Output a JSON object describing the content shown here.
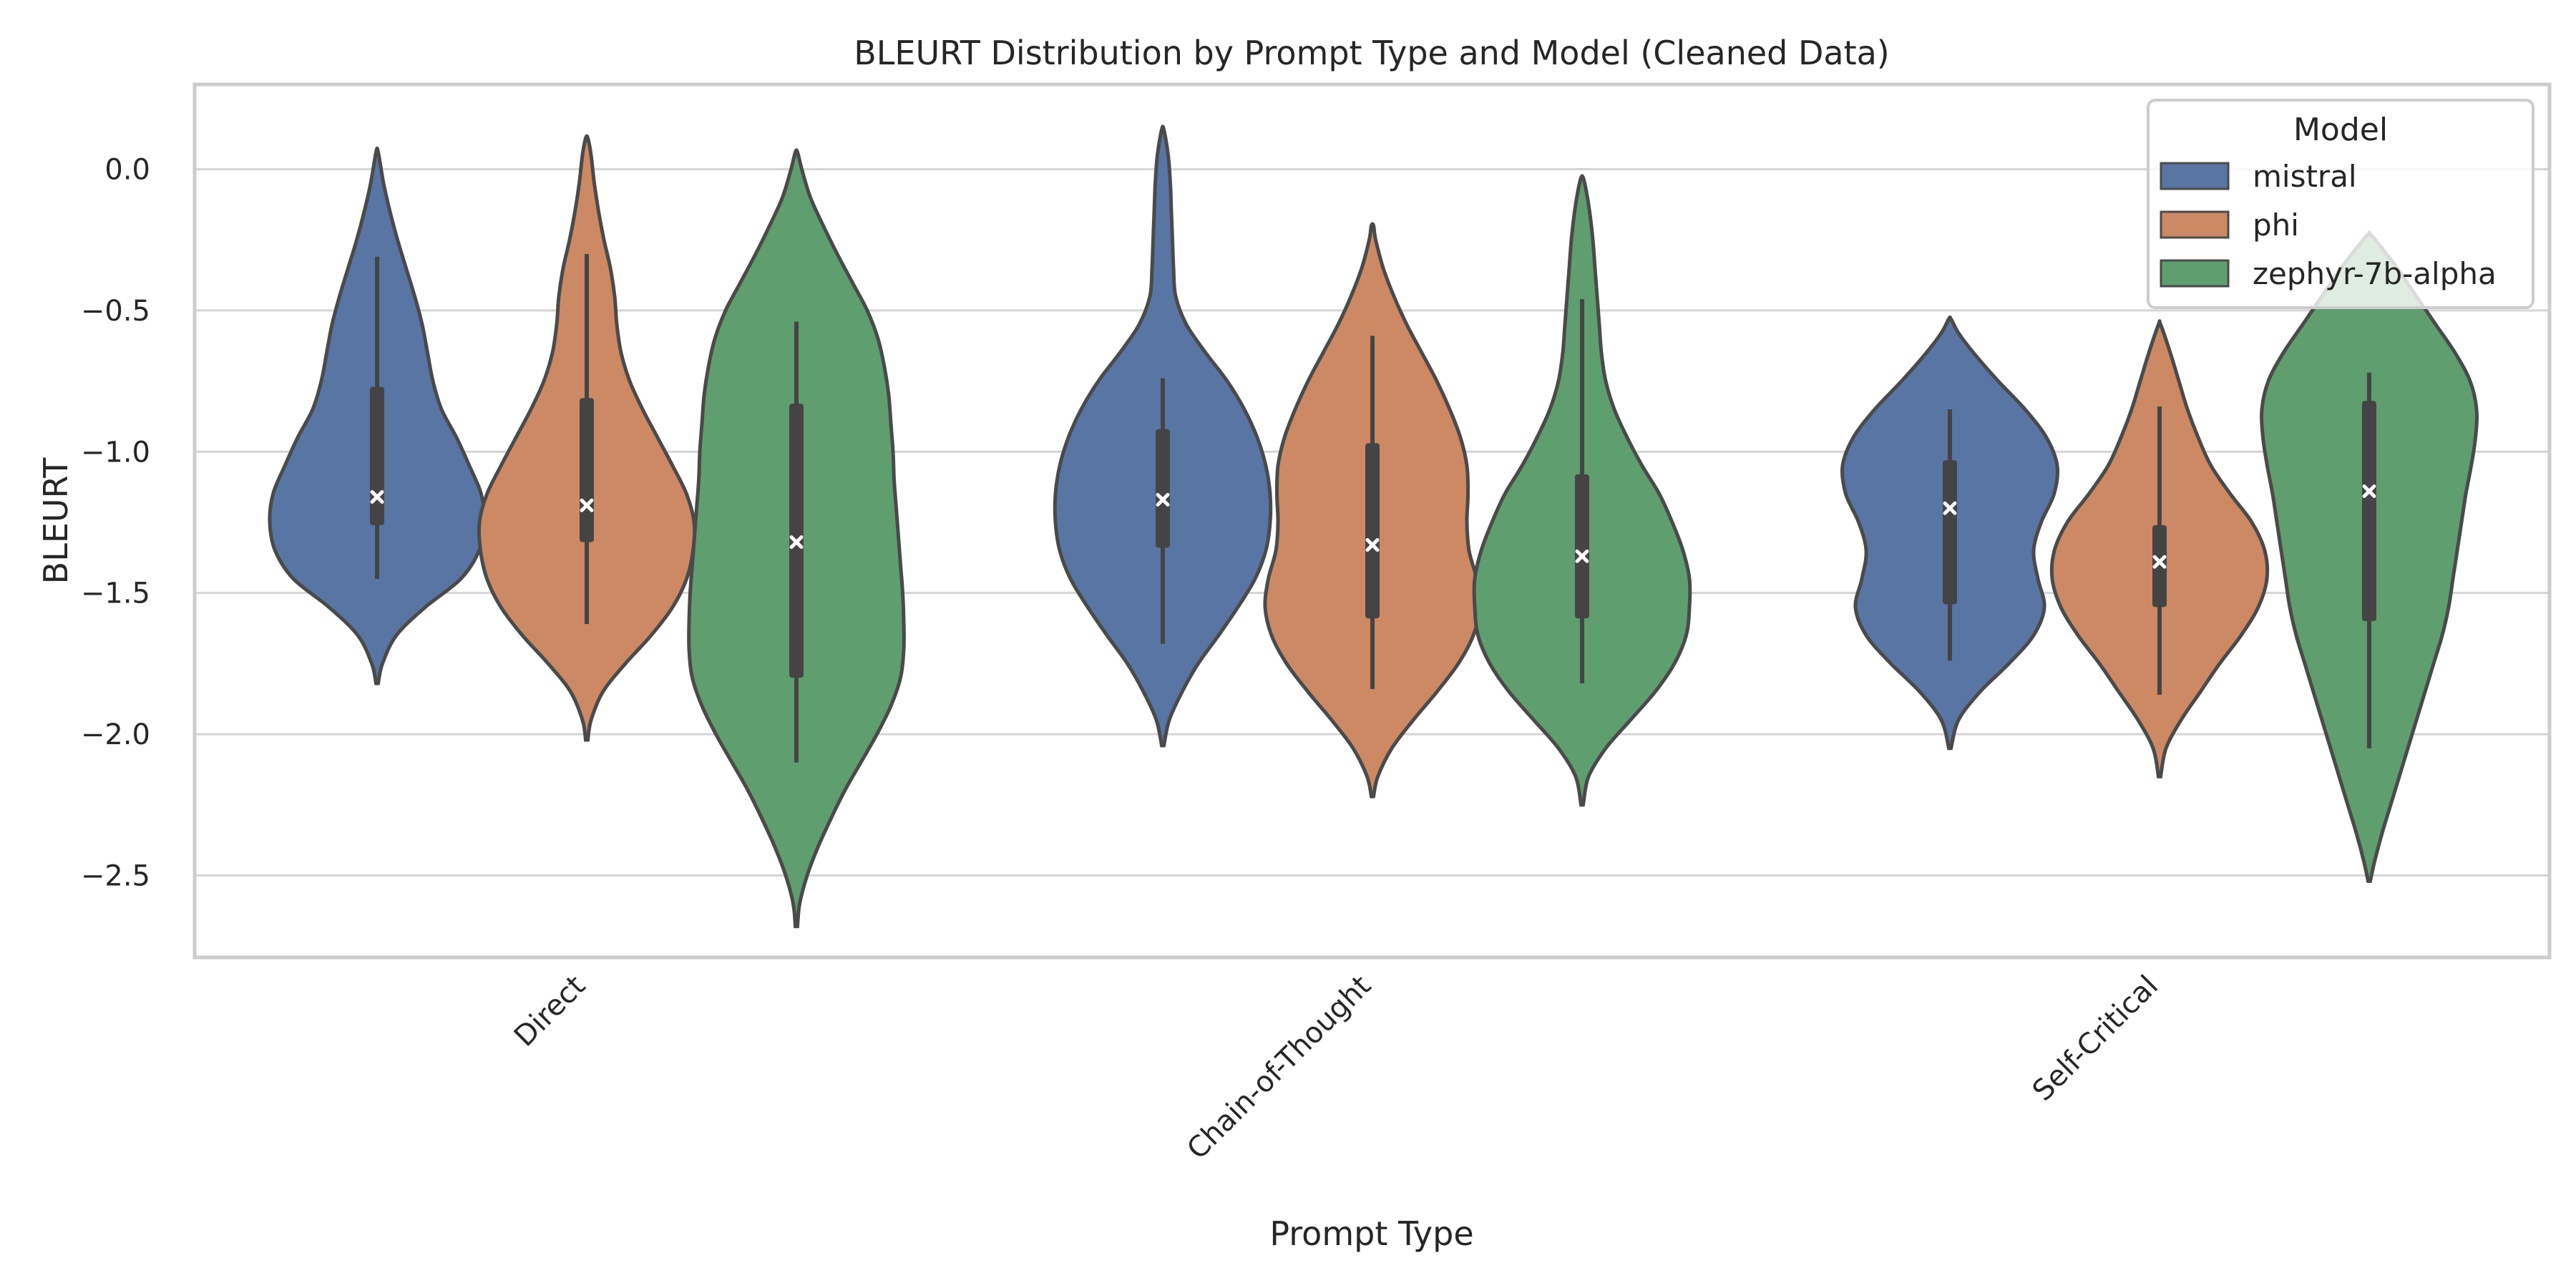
{
  "chart_data": {
    "type": "violin",
    "title": "BLEURT Distribution by Prompt Type and Model (Cleaned Data)",
    "xlabel": "Prompt Type",
    "ylabel": "BLEURT",
    "ylim": [
      -2.79,
      0.3
    ],
    "yticks": [
      0.0,
      -0.5,
      -1.0,
      -1.5,
      -2.0,
      -2.5
    ],
    "ytick_labels": [
      "0.0",
      "−0.5",
      "−1.0",
      "−1.5",
      "−2.0",
      "−2.5"
    ],
    "categories": [
      "Direct",
      "Chain-of-Thought",
      "Self-Critical"
    ],
    "grid": true,
    "legend": {
      "title": "Model",
      "position": "top-right"
    },
    "series": [
      {
        "name": "mistral",
        "color": "#5875a4",
        "violins": [
          {
            "min": -1.82,
            "max": 0.06,
            "whisker_low": -1.45,
            "whisker_high": -0.31,
            "q1": -1.26,
            "q3": -0.77,
            "median": -1.16,
            "shape": [
              [
                -1.82,
                0.01
              ],
              [
                -1.75,
                0.05
              ],
              [
                -1.65,
                0.18
              ],
              [
                -1.55,
                0.45
              ],
              [
                -1.45,
                0.78
              ],
              [
                -1.35,
                0.95
              ],
              [
                -1.25,
                1.0
              ],
              [
                -1.15,
                0.97
              ],
              [
                -1.05,
                0.86
              ],
              [
                -0.95,
                0.74
              ],
              [
                -0.85,
                0.6
              ],
              [
                -0.75,
                0.52
              ],
              [
                -0.65,
                0.47
              ],
              [
                -0.55,
                0.42
              ],
              [
                -0.45,
                0.35
              ],
              [
                -0.35,
                0.27
              ],
              [
                -0.25,
                0.19
              ],
              [
                -0.15,
                0.12
              ],
              [
                -0.05,
                0.06
              ],
              [
                0.06,
                0.01
              ]
            ]
          },
          {
            "min": -2.04,
            "max": 0.14,
            "whisker_low": -1.68,
            "whisker_high": -0.74,
            "q1": -1.34,
            "q3": -0.92,
            "median": -1.17,
            "shape": [
              [
                -2.04,
                0.01
              ],
              [
                -1.95,
                0.06
              ],
              [
                -1.85,
                0.18
              ],
              [
                -1.75,
                0.33
              ],
              [
                -1.65,
                0.52
              ],
              [
                -1.55,
                0.7
              ],
              [
                -1.45,
                0.86
              ],
              [
                -1.35,
                0.96
              ],
              [
                -1.25,
                1.0
              ],
              [
                -1.15,
                1.0
              ],
              [
                -1.05,
                0.96
              ],
              [
                -0.95,
                0.88
              ],
              [
                -0.85,
                0.76
              ],
              [
                -0.75,
                0.6
              ],
              [
                -0.65,
                0.4
              ],
              [
                -0.55,
                0.22
              ],
              [
                -0.45,
                0.12
              ],
              [
                -0.35,
                0.1
              ],
              [
                -0.25,
                0.09
              ],
              [
                -0.15,
                0.08
              ],
              [
                -0.05,
                0.07
              ],
              [
                0.05,
                0.05
              ],
              [
                0.14,
                0.01
              ]
            ]
          },
          {
            "min": -2.05,
            "max": -0.53,
            "whisker_low": -1.74,
            "whisker_high": -0.85,
            "q1": -1.54,
            "q3": -1.03,
            "median": -1.2,
            "shape": [
              [
                -2.05,
                0.01
              ],
              [
                -1.95,
                0.08
              ],
              [
                -1.85,
                0.28
              ],
              [
                -1.75,
                0.55
              ],
              [
                -1.65,
                0.78
              ],
              [
                -1.55,
                0.88
              ],
              [
                -1.45,
                0.82
              ],
              [
                -1.35,
                0.78
              ],
              [
                -1.25,
                0.85
              ],
              [
                -1.15,
                0.97
              ],
              [
                -1.05,
                1.0
              ],
              [
                -0.95,
                0.9
              ],
              [
                -0.85,
                0.7
              ],
              [
                -0.75,
                0.45
              ],
              [
                -0.65,
                0.22
              ],
              [
                -0.58,
                0.08
              ],
              [
                -0.53,
                0.01
              ]
            ]
          }
        ]
      },
      {
        "name": "phi",
        "color": "#cc8963",
        "violins": [
          {
            "min": -2.02,
            "max": 0.11,
            "whisker_low": -1.61,
            "whisker_high": -0.3,
            "q1": -1.32,
            "q3": -0.81,
            "median": -1.19,
            "shape": [
              [
                -2.02,
                0.01
              ],
              [
                -1.95,
                0.04
              ],
              [
                -1.85,
                0.15
              ],
              [
                -1.75,
                0.36
              ],
              [
                -1.65,
                0.6
              ],
              [
                -1.55,
                0.8
              ],
              [
                -1.45,
                0.93
              ],
              [
                -1.35,
                0.99
              ],
              [
                -1.25,
                1.0
              ],
              [
                -1.15,
                0.93
              ],
              [
                -1.05,
                0.8
              ],
              [
                -0.95,
                0.66
              ],
              [
                -0.85,
                0.52
              ],
              [
                -0.75,
                0.4
              ],
              [
                -0.65,
                0.32
              ],
              [
                -0.55,
                0.28
              ],
              [
                -0.45,
                0.26
              ],
              [
                -0.35,
                0.22
              ],
              [
                -0.25,
                0.16
              ],
              [
                -0.15,
                0.11
              ],
              [
                -0.05,
                0.07
              ],
              [
                0.05,
                0.04
              ],
              [
                0.11,
                0.01
              ]
            ]
          },
          {
            "min": -2.22,
            "max": -0.2,
            "whisker_low": -1.84,
            "whisker_high": -0.59,
            "q1": -1.59,
            "q3": -0.97,
            "median": -1.33,
            "shape": [
              [
                -2.22,
                0.01
              ],
              [
                -2.15,
                0.05
              ],
              [
                -2.05,
                0.18
              ],
              [
                -1.95,
                0.38
              ],
              [
                -1.85,
                0.6
              ],
              [
                -1.75,
                0.8
              ],
              [
                -1.65,
                0.94
              ],
              [
                -1.55,
                1.0
              ],
              [
                -1.45,
                0.97
              ],
              [
                -1.35,
                0.9
              ],
              [
                -1.25,
                0.88
              ],
              [
                -1.15,
                0.89
              ],
              [
                -1.05,
                0.88
              ],
              [
                -0.95,
                0.82
              ],
              [
                -0.85,
                0.72
              ],
              [
                -0.75,
                0.6
              ],
              [
                -0.65,
                0.46
              ],
              [
                -0.55,
                0.32
              ],
              [
                -0.45,
                0.2
              ],
              [
                -0.35,
                0.1
              ],
              [
                -0.25,
                0.03
              ],
              [
                -0.2,
                0.01
              ]
            ]
          },
          {
            "min": -2.15,
            "max": -0.55,
            "whisker_low": -1.86,
            "whisker_high": -0.84,
            "q1": -1.55,
            "q3": -1.26,
            "median": -1.39,
            "shape": [
              [
                -2.15,
                0.01
              ],
              [
                -2.05,
                0.06
              ],
              [
                -1.95,
                0.2
              ],
              [
                -1.85,
                0.38
              ],
              [
                -1.75,
                0.56
              ],
              [
                -1.65,
                0.76
              ],
              [
                -1.55,
                0.92
              ],
              [
                -1.45,
                1.0
              ],
              [
                -1.35,
                0.98
              ],
              [
                -1.25,
                0.86
              ],
              [
                -1.15,
                0.66
              ],
              [
                -1.05,
                0.48
              ],
              [
                -0.95,
                0.36
              ],
              [
                -0.85,
                0.26
              ],
              [
                -0.75,
                0.18
              ],
              [
                -0.65,
                0.1
              ],
              [
                -0.55,
                0.01
              ]
            ]
          }
        ]
      },
      {
        "name": "zephyr-7b-alpha",
        "color": "#5f9e6e",
        "violins": [
          {
            "min": -2.68,
            "max": 0.06,
            "whisker_low": -2.1,
            "whisker_high": -0.54,
            "q1": -1.8,
            "q3": -0.83,
            "median": -1.32,
            "shape": [
              [
                -2.68,
                0.01
              ],
              [
                -2.6,
                0.03
              ],
              [
                -2.5,
                0.1
              ],
              [
                -2.4,
                0.2
              ],
              [
                -2.3,
                0.32
              ],
              [
                -2.2,
                0.45
              ],
              [
                -2.1,
                0.6
              ],
              [
                -2.0,
                0.75
              ],
              [
                -1.9,
                0.88
              ],
              [
                -1.8,
                0.97
              ],
              [
                -1.7,
                1.0
              ],
              [
                -1.6,
                1.0
              ],
              [
                -1.5,
                0.99
              ],
              [
                -1.4,
                0.97
              ],
              [
                -1.3,
                0.95
              ],
              [
                -1.2,
                0.93
              ],
              [
                -1.1,
                0.91
              ],
              [
                -1.0,
                0.9
              ],
              [
                -0.9,
                0.88
              ],
              [
                -0.8,
                0.86
              ],
              [
                -0.7,
                0.82
              ],
              [
                -0.6,
                0.76
              ],
              [
                -0.5,
                0.66
              ],
              [
                -0.4,
                0.52
              ],
              [
                -0.3,
                0.38
              ],
              [
                -0.2,
                0.25
              ],
              [
                -0.1,
                0.13
              ],
              [
                0.0,
                0.05
              ],
              [
                0.06,
                0.01
              ]
            ]
          },
          {
            "min": -2.25,
            "max": -0.03,
            "whisker_low": -1.82,
            "whisker_high": -0.46,
            "q1": -1.59,
            "q3": -1.08,
            "median": -1.37,
            "shape": [
              [
                -2.25,
                0.01
              ],
              [
                -2.15,
                0.06
              ],
              [
                -2.05,
                0.22
              ],
              [
                -1.95,
                0.45
              ],
              [
                -1.85,
                0.68
              ],
              [
                -1.75,
                0.86
              ],
              [
                -1.65,
                0.97
              ],
              [
                -1.55,
                1.0
              ],
              [
                -1.45,
                1.0
              ],
              [
                -1.35,
                0.94
              ],
              [
                -1.25,
                0.84
              ],
              [
                -1.15,
                0.72
              ],
              [
                -1.05,
                0.56
              ],
              [
                -0.95,
                0.42
              ],
              [
                -0.85,
                0.3
              ],
              [
                -0.75,
                0.22
              ],
              [
                -0.65,
                0.18
              ],
              [
                -0.55,
                0.16
              ],
              [
                -0.45,
                0.14
              ],
              [
                -0.35,
                0.12
              ],
              [
                -0.25,
                0.1
              ],
              [
                -0.15,
                0.07
              ],
              [
                -0.08,
                0.04
              ],
              [
                -0.03,
                0.01
              ]
            ]
          },
          {
            "min": -2.52,
            "max": -0.23,
            "whisker_low": -2.05,
            "whisker_high": -0.72,
            "q1": -1.6,
            "q3": -0.82,
            "median": -1.14,
            "shape": [
              [
                -2.52,
                0.01
              ],
              [
                -2.45,
                0.05
              ],
              [
                -2.35,
                0.12
              ],
              [
                -2.25,
                0.2
              ],
              [
                -2.15,
                0.28
              ],
              [
                -2.05,
                0.36
              ],
              [
                -1.95,
                0.44
              ],
              [
                -1.85,
                0.52
              ],
              [
                -1.75,
                0.6
              ],
              [
                -1.65,
                0.68
              ],
              [
                -1.55,
                0.74
              ],
              [
                -1.45,
                0.78
              ],
              [
                -1.35,
                0.82
              ],
              [
                -1.25,
                0.86
              ],
              [
                -1.15,
                0.9
              ],
              [
                -1.05,
                0.95
              ],
              [
                -0.95,
                0.99
              ],
              [
                -0.85,
                1.0
              ],
              [
                -0.75,
                0.94
              ],
              [
                -0.65,
                0.8
              ],
              [
                -0.55,
                0.62
              ],
              [
                -0.45,
                0.44
              ],
              [
                -0.35,
                0.26
              ],
              [
                -0.28,
                0.12
              ],
              [
                -0.23,
                0.01
              ]
            ]
          }
        ]
      }
    ]
  }
}
